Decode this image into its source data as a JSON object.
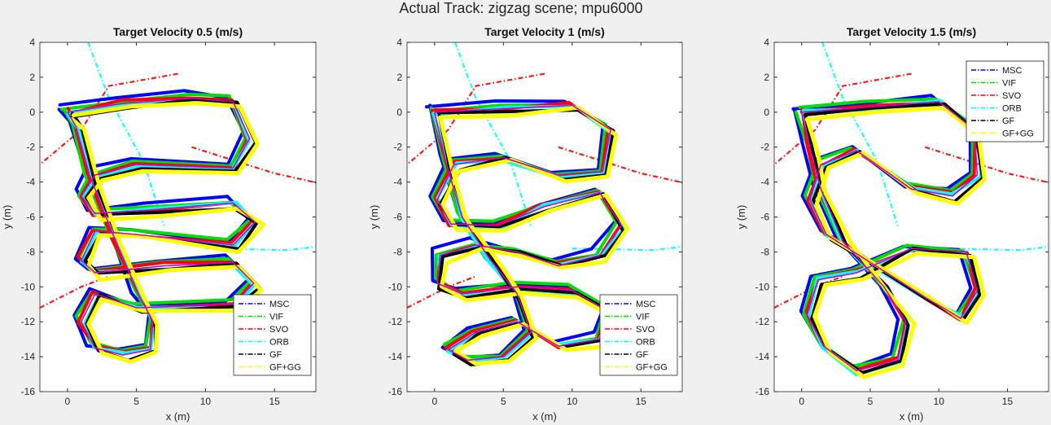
{
  "figure": {
    "suptitle": "Actual Track: zigzag scene; mpu6000"
  },
  "chart_data": [
    {
      "type": "line",
      "title": "Target Velocity 0.5 (m/s)",
      "xlabel": "x (m)",
      "ylabel": "y (m)",
      "xlim": [
        -2,
        18
      ],
      "ylim": [
        -16,
        4
      ],
      "xticks": [
        0,
        5,
        10,
        15
      ],
      "yticks": [
        -16,
        -14,
        -12,
        -10,
        -8,
        -6,
        -4,
        -2,
        0,
        2,
        4
      ],
      "grid": false,
      "legend": {
        "placement": "bottom-right"
      },
      "series": [
        {
          "name": "MSC",
          "color": "#0000ff",
          "style": "dash-dot"
        },
        {
          "name": "VIF",
          "color": "#00dd00",
          "style": "dash-dot"
        },
        {
          "name": "SVO",
          "color": "#ff0000",
          "style": "dash-dot"
        },
        {
          "name": "ORB",
          "color": "#00ffff",
          "style": "dash-dot"
        },
        {
          "name": "GF",
          "color": "#000000",
          "style": "dash-dot"
        },
        {
          "name": "GF+GG",
          "color": "#ffff00",
          "style": "dash-dot"
        }
      ],
      "ground_truth_color": "#cc00cc",
      "path": [
        [
          0,
          0
        ],
        [
          4,
          0.5
        ],
        [
          9,
          0.8
        ],
        [
          12,
          0.6
        ],
        [
          13.2,
          -1.5
        ],
        [
          12,
          -3.2
        ],
        [
          5,
          -3
        ],
        [
          2,
          -3.6
        ],
        [
          1,
          -4.8
        ],
        [
          2,
          -5.8
        ],
        [
          6,
          -5.6
        ],
        [
          12,
          -5.2
        ],
        [
          13.6,
          -6.3
        ],
        [
          12,
          -7.6
        ],
        [
          5,
          -7
        ],
        [
          2,
          -6.8
        ],
        [
          1,
          -8.5
        ],
        [
          2,
          -9.2
        ],
        [
          7,
          -8.8
        ],
        [
          12,
          -8.6
        ],
        [
          13.5,
          -9.8
        ],
        [
          12,
          -11
        ],
        [
          5,
          -11.2
        ],
        [
          2,
          -10.4
        ],
        [
          1,
          -12
        ],
        [
          2,
          -13.5
        ],
        [
          4,
          -13.9
        ],
        [
          6,
          -13.6
        ],
        [
          6.2,
          -12
        ],
        [
          5.2,
          -10.5
        ],
        [
          3.4,
          -7.2
        ],
        [
          1.6,
          -3.6
        ],
        [
          0.6,
          -0.8
        ],
        [
          0,
          0
        ]
      ]
    },
    {
      "type": "line",
      "title": "Target Velocity 1 (m/s)",
      "xlabel": "x (m)",
      "ylabel": "y (m)",
      "xlim": [
        -2,
        18
      ],
      "ylim": [
        -16,
        4
      ],
      "xticks": [
        0,
        5,
        10,
        15
      ],
      "yticks": [
        -16,
        -14,
        -12,
        -10,
        -8,
        -6,
        -4,
        -2,
        0,
        2,
        4
      ],
      "grid": false,
      "legend": {
        "placement": "bottom-right"
      },
      "series": [
        {
          "name": "MSC",
          "color": "#0000ff",
          "style": "dash-dot"
        },
        {
          "name": "VIF",
          "color": "#00dd00",
          "style": "dash-dot"
        },
        {
          "name": "SVO",
          "color": "#ff0000",
          "style": "dash-dot"
        },
        {
          "name": "ORB",
          "color": "#00ffff",
          "style": "dash-dot"
        },
        {
          "name": "GF",
          "color": "#000000",
          "style": "dash-dot"
        },
        {
          "name": "GF+GG",
          "color": "#ffff00",
          "style": "dash-dot"
        }
      ],
      "ground_truth_color": "#cc00cc",
      "path": [
        [
          0,
          0
        ],
        [
          5,
          0.2
        ],
        [
          10,
          0.4
        ],
        [
          12.8,
          -1
        ],
        [
          12.2,
          -3.4
        ],
        [
          9,
          -3.6
        ],
        [
          5,
          -2.6
        ],
        [
          1.4,
          -3
        ],
        [
          0.2,
          -5
        ],
        [
          1.2,
          -6.4
        ],
        [
          4.6,
          -6.5
        ],
        [
          8,
          -5.4
        ],
        [
          12,
          -4.6
        ],
        [
          13.6,
          -6.5
        ],
        [
          12,
          -8.2
        ],
        [
          9,
          -8.8
        ],
        [
          6,
          -8
        ],
        [
          3,
          -7.6
        ],
        [
          0.4,
          -8.2
        ],
        [
          0.2,
          -9.8
        ],
        [
          2,
          -10.4
        ],
        [
          6,
          -10
        ],
        [
          10,
          -10.2
        ],
        [
          12.6,
          -11.4
        ],
        [
          12,
          -13
        ],
        [
          9,
          -13.4
        ],
        [
          6,
          -12
        ],
        [
          3,
          -12.6
        ],
        [
          1,
          -13.6
        ],
        [
          2.4,
          -14.2
        ],
        [
          5,
          -14
        ],
        [
          7,
          -12.6
        ],
        [
          6,
          -10.4
        ],
        [
          4,
          -8.4
        ],
        [
          2,
          -6
        ],
        [
          0.8,
          -2.8
        ],
        [
          0,
          0
        ]
      ]
    },
    {
      "type": "line",
      "title": "Target Velocity 1.5 (m/s)",
      "xlabel": "x (m)",
      "ylabel": "y (m)",
      "xlim": [
        -2,
        18
      ],
      "ylim": [
        -16,
        4
      ],
      "xticks": [
        0,
        5,
        10,
        15
      ],
      "yticks": [
        -16,
        -14,
        -12,
        -10,
        -8,
        -6,
        -4,
        -2,
        0,
        2,
        4
      ],
      "grid": false,
      "legend": {
        "placement": "top-right"
      },
      "series": [
        {
          "name": "MSC",
          "color": "#0000ff",
          "style": "dash-dot"
        },
        {
          "name": "VIF",
          "color": "#00dd00",
          "style": "dash-dot"
        },
        {
          "name": "SVO",
          "color": "#ff0000",
          "style": "dash-dot"
        },
        {
          "name": "ORB",
          "color": "#00ffff",
          "style": "dash-dot"
        },
        {
          "name": "GF",
          "color": "#000000",
          "style": "dash-dot"
        },
        {
          "name": "GF+GG",
          "color": "#ffff00",
          "style": "dash-dot"
        }
      ],
      "ground_truth_color": "#cc00cc",
      "path": [
        [
          0,
          0
        ],
        [
          5,
          0.3
        ],
        [
          10,
          0.6
        ],
        [
          12.6,
          -1
        ],
        [
          12.8,
          -3.6
        ],
        [
          11,
          -4.8
        ],
        [
          8,
          -4.4
        ],
        [
          4,
          -2.2
        ],
        [
          1.4,
          -3
        ],
        [
          0.6,
          -5
        ],
        [
          1.8,
          -7
        ],
        [
          5,
          -8.6
        ],
        [
          9,
          -10.6
        ],
        [
          11.6,
          -11.8
        ],
        [
          12.8,
          -10.2
        ],
        [
          12,
          -8
        ],
        [
          8,
          -7.8
        ],
        [
          4,
          -9.2
        ],
        [
          1.2,
          -9.6
        ],
        [
          0.4,
          -11.6
        ],
        [
          1.6,
          -13.4
        ],
        [
          4,
          -14.8
        ],
        [
          7,
          -14.2
        ],
        [
          7.6,
          -12
        ],
        [
          6,
          -10
        ],
        [
          3,
          -7.4
        ],
        [
          1.4,
          -4.4
        ],
        [
          0.6,
          -2
        ],
        [
          0,
          0
        ]
      ]
    }
  ]
}
